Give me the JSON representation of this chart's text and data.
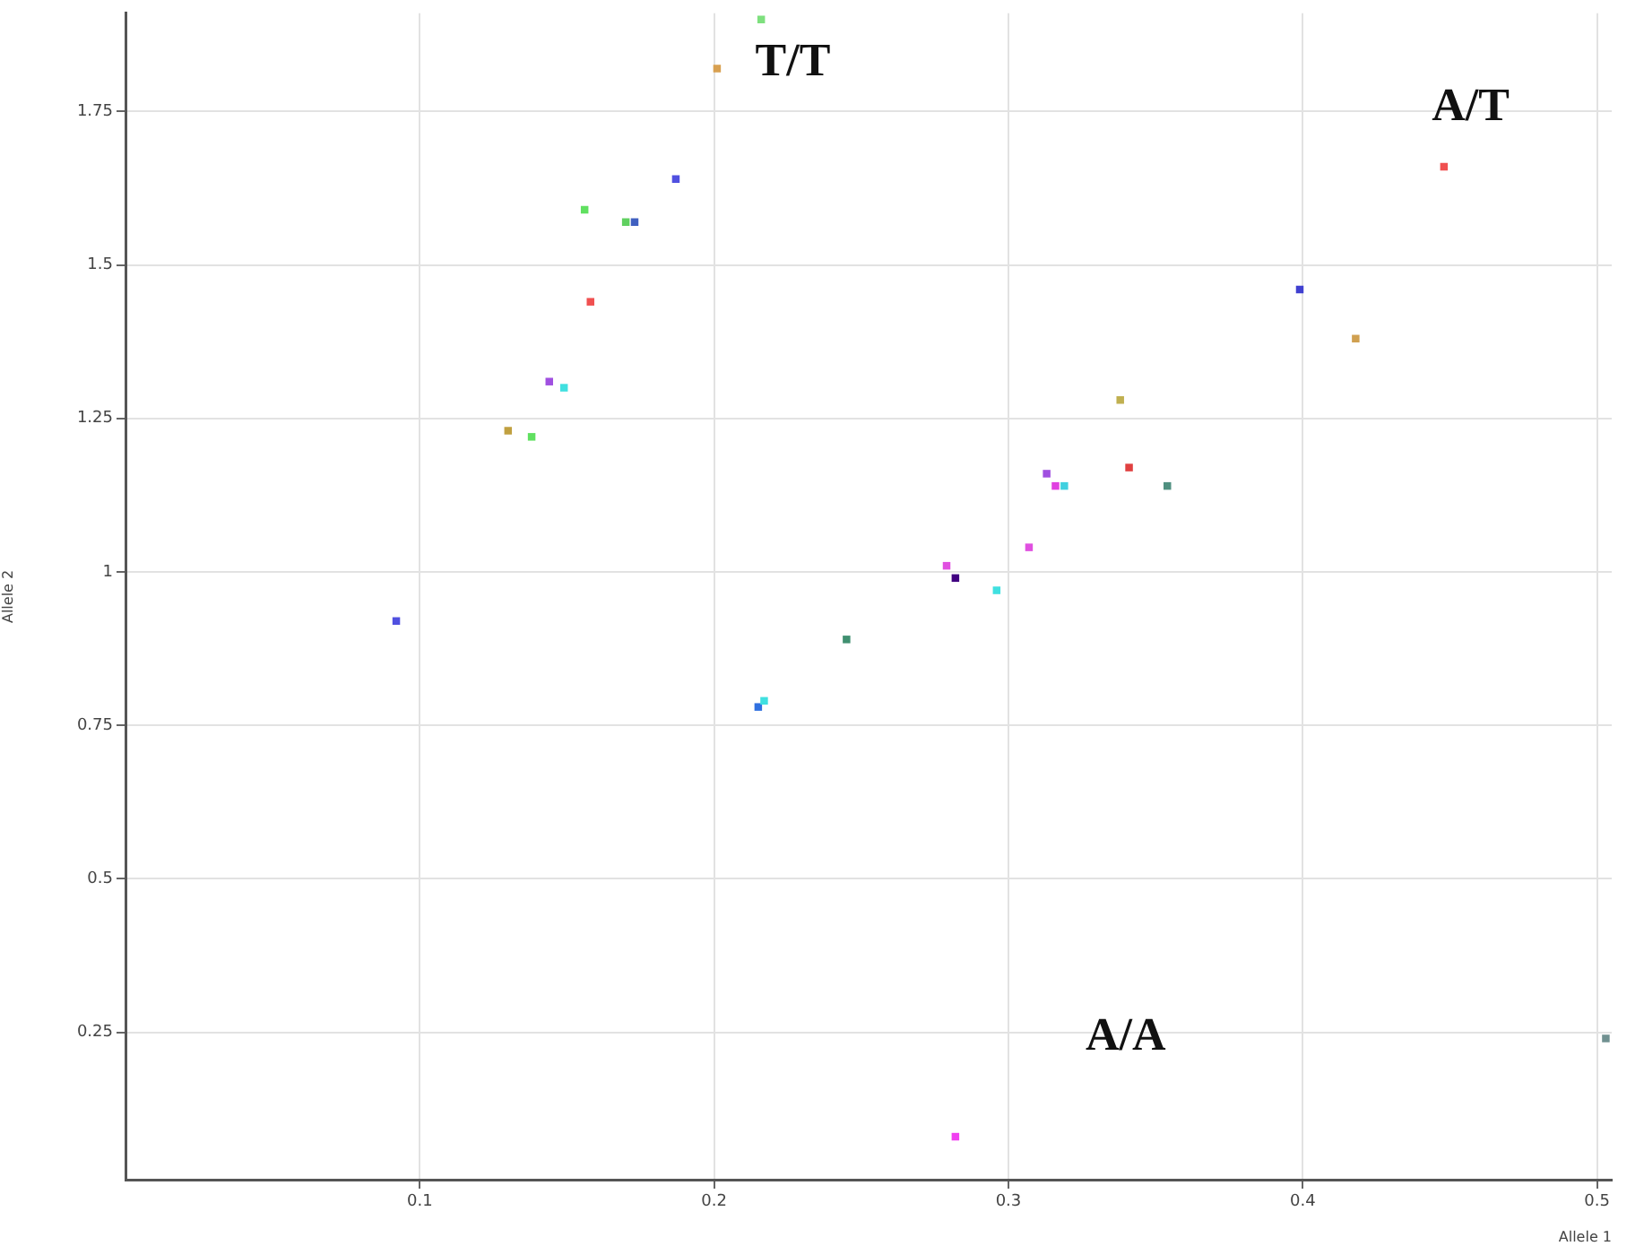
{
  "chart_data": {
    "type": "scatter",
    "xlabel": "Allele 1",
    "ylabel": "Allele 2",
    "x": [
      0.216,
      0.201,
      0.187,
      0.156,
      0.17,
      0.173,
      0.158,
      0.144,
      0.149,
      0.13,
      0.138,
      0.448,
      0.399,
      0.418,
      0.338,
      0.313,
      0.316,
      0.319,
      0.341,
      0.354,
      0.307,
      0.279,
      0.282,
      0.296,
      0.092,
      0.215,
      0.217,
      0.245,
      0.282,
      0.503
    ],
    "values": [
      1.9,
      1.82,
      1.64,
      1.59,
      1.57,
      1.57,
      1.44,
      1.31,
      1.3,
      1.23,
      1.22,
      1.66,
      1.46,
      1.38,
      1.28,
      1.16,
      1.14,
      1.14,
      1.17,
      1.14,
      1.04,
      1.01,
      0.99,
      0.97,
      0.92,
      0.78,
      0.79,
      0.89,
      0.08,
      0.24
    ],
    "colors": [
      "#7ee07e",
      "#d8a050",
      "#5050e0",
      "#60e060",
      "#60d060",
      "#4060c0",
      "#f05050",
      "#a050e0",
      "#40e0e0",
      "#c0a040",
      "#60e060",
      "#f05050",
      "#4040d0",
      "#d0a050",
      "#c0b050",
      "#a050e0",
      "#e040e0",
      "#40d0e0",
      "#e04040",
      "#509080",
      "#e050e0",
      "#e050e0",
      "#400080",
      "#40e0e0",
      "#5050e0",
      "#3070e0",
      "#40e0e0",
      "#409070",
      "#f040f0",
      "#709090"
    ],
    "xlim": [
      0,
      0.505
    ],
    "xticks": [
      0.1,
      0.2,
      0.3,
      0.4,
      0.5
    ],
    "ylim": [
      0.01,
      1.91
    ],
    "yticks": [
      0.25,
      0.5,
      0.75,
      1,
      1.25,
      1.5,
      1.75
    ],
    "grid": true,
    "legend": false,
    "marker": "square",
    "annotations": [
      "T/T",
      "A/T",
      "A/A"
    ]
  }
}
